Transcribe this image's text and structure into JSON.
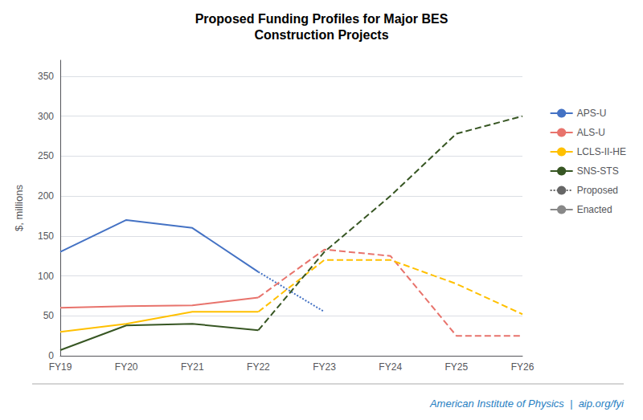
{
  "chart_data": {
    "type": "line",
    "title": "Proposed Funding Profiles for Major BES\nConstruction Projects",
    "y_label": "$, millions",
    "categories": [
      "FY19",
      "FY20",
      "FY21",
      "FY22",
      "FY23",
      "FY24",
      "FY25",
      "FY26"
    ],
    "ylim": [
      0,
      370
    ],
    "yticks": [
      0,
      50,
      100,
      150,
      200,
      250,
      300,
      350
    ],
    "grid": true,
    "legend": "right",
    "series": [
      {
        "name": "APS-U",
        "color": "#4472C4",
        "line_style": "solid",
        "values": [
          130,
          170,
          160,
          105,
          null,
          null,
          null,
          null
        ]
      },
      {
        "name": "APS-U",
        "color": "#4472C4",
        "line_style": "dotted",
        "values": [
          null,
          null,
          null,
          105,
          55,
          null,
          null,
          null
        ]
      },
      {
        "name": "ALS-U",
        "color": "#E8736C",
        "line_style": "solid",
        "values": [
          60,
          62,
          63,
          73,
          null,
          null,
          null,
          null
        ]
      },
      {
        "name": "ALS-U",
        "color": "#E8736C",
        "line_style": "dashed",
        "values": [
          null,
          null,
          null,
          73,
          133,
          125,
          25,
          25
        ]
      },
      {
        "name": "LCLS-II-HE",
        "color": "#FFC000",
        "line_style": "solid",
        "values": [
          30,
          40,
          55,
          55,
          null,
          null,
          null,
          null
        ]
      },
      {
        "name": "LCLS-II-HE",
        "color": "#FFC000",
        "line_style": "dashed",
        "values": [
          null,
          null,
          null,
          55,
          120,
          120,
          90,
          52
        ]
      },
      {
        "name": "SNS-STS",
        "color": "#375623",
        "line_style": "solid",
        "values": [
          7,
          38,
          40,
          32,
          null,
          null,
          null,
          null
        ]
      },
      {
        "name": "SNS-STS",
        "color": "#375623",
        "line_style": "dashed",
        "values": [
          null,
          null,
          null,
          32,
          130,
          200,
          278,
          300
        ]
      },
      {
        "name": "Proposed",
        "color": "#666666",
        "line_style": "dotted",
        "values": [
          null,
          null,
          null,
          null,
          null,
          null,
          null,
          null
        ]
      },
      {
        "name": "Enacted",
        "color": "#888888",
        "line_style": "solid",
        "values": [
          null,
          null,
          null,
          null,
          null,
          null,
          null,
          null
        ]
      }
    ],
    "annotations": [
      {
        "text": "American Institute of Physics  |  aip.org/fyi",
        "color": "#1F7EC2"
      }
    ]
  }
}
